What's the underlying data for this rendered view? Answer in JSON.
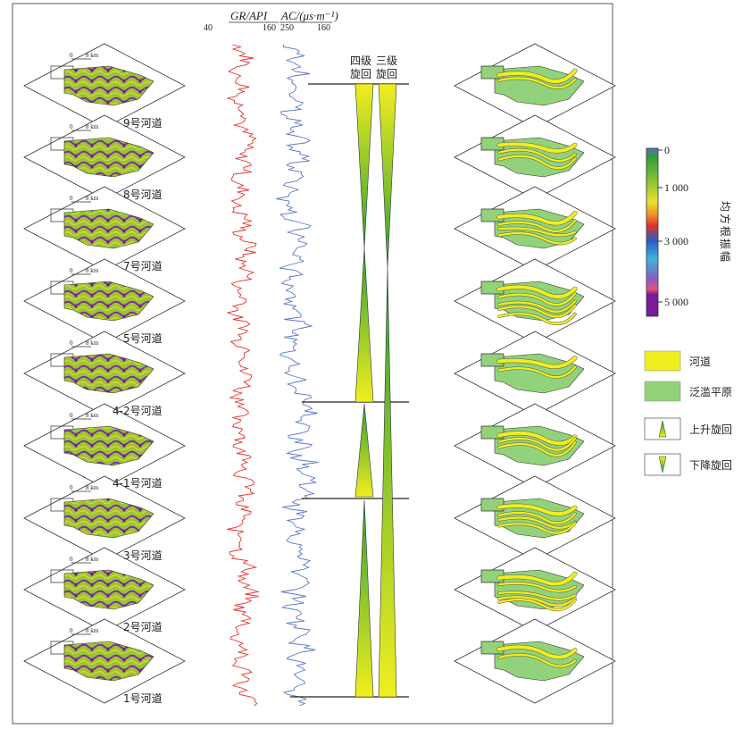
{
  "log_header": {
    "gr_label": "GR/API",
    "gr_min": "40",
    "gr_max": "160",
    "ac_label": "AC/(μs·m⁻¹)",
    "ac_left": "250",
    "ac_right": "160"
  },
  "cycle_headers": {
    "fourth_order": [
      "四级",
      "旋回"
    ],
    "third_order": [
      "三级",
      "旋回"
    ]
  },
  "scale_label": "8 km",
  "scale_zero": "0",
  "channels": [
    "9号河道",
    "8号河道",
    "7号河道",
    "5号河道",
    "4-2号河道",
    "4-1号河道",
    "3号河道",
    "2号河道",
    "1号河道"
  ],
  "colorbar": {
    "title": "均方根振幅",
    "ticks": [
      "0",
      "1 000",
      "3 000",
      "5 000"
    ],
    "colors": [
      "#5b6fc1",
      "#2e9e3c",
      "#9cc832",
      "#e8e030",
      "#f08a26",
      "#e0342a",
      "#2a5bc7",
      "#3ab6d6",
      "#8a5cc7",
      "#e8507a",
      "#7a1b9a"
    ]
  },
  "legend": [
    {
      "label": "河道",
      "color": "#f0ee1f"
    },
    {
      "label": "泛滥平原",
      "color": "#92d27a"
    },
    {
      "label": "上升旋回",
      "color": "#f0ee1f"
    },
    {
      "label": "下降旋回",
      "color": "#f0ee1f"
    }
  ],
  "colors": {
    "gr_curve": "#e4312b",
    "ac_curve": "#5a76c8",
    "floodplain": "#92d27a",
    "channel": "#f0ee1f",
    "cycle_fill": "#f0ee1f",
    "cycle_green": "#2f9e3a"
  }
}
